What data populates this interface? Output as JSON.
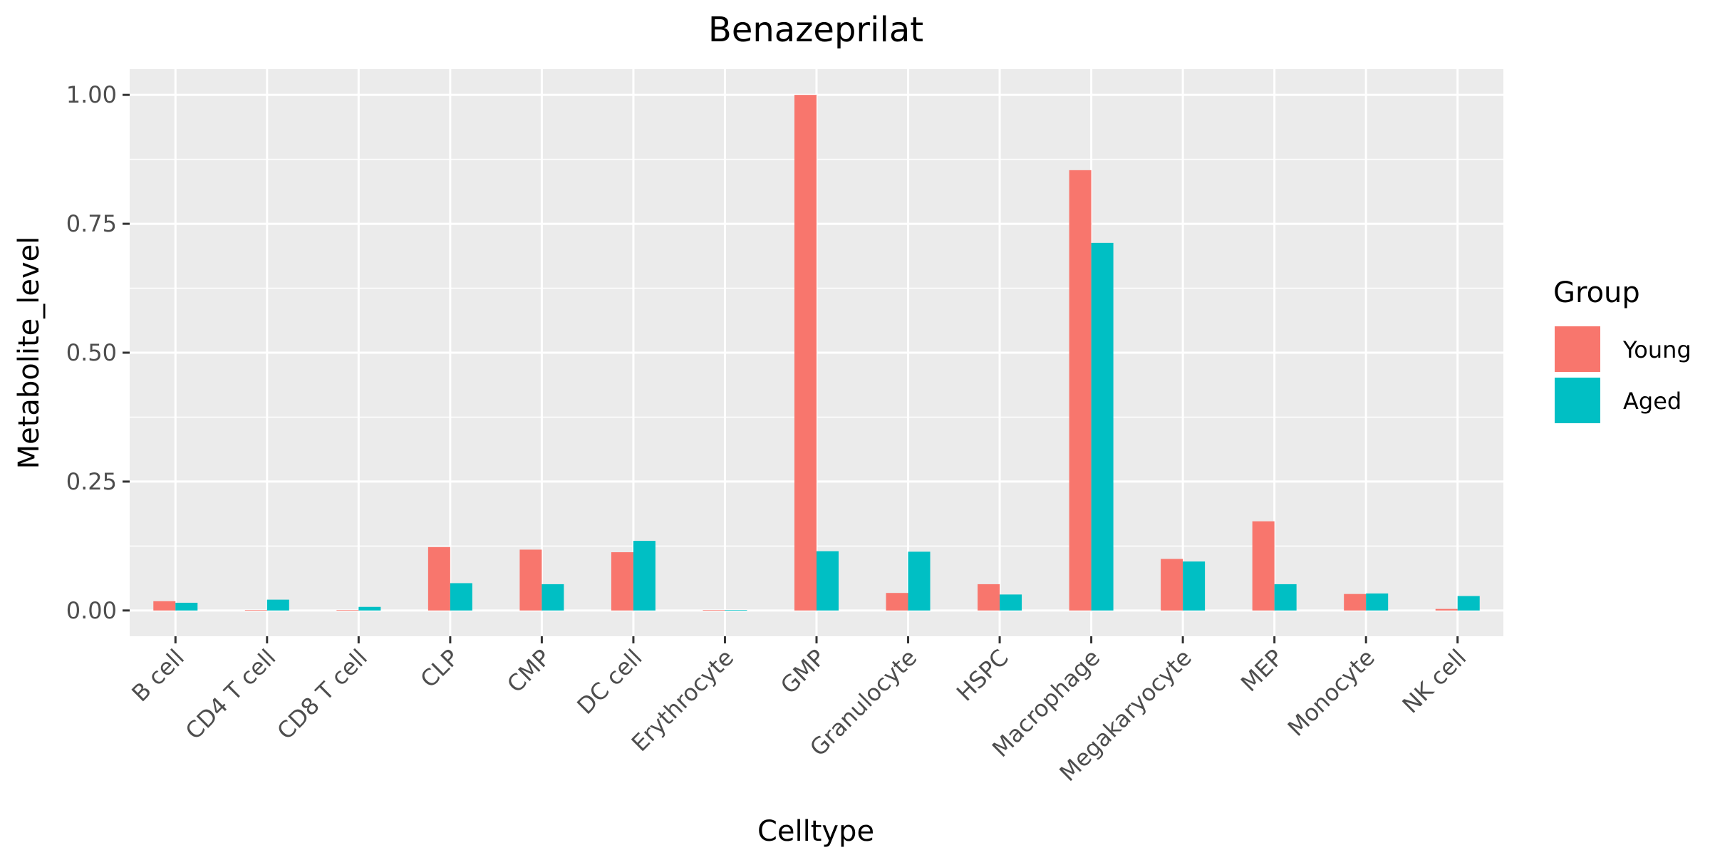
{
  "chart_data": {
    "type": "bar",
    "title": "Benazeprilat",
    "xlabel": "Celltype",
    "ylabel": "Metabolite_level",
    "ylim": [
      -0.05,
      1.05
    ],
    "yticks": [
      0.0,
      0.25,
      0.5,
      0.75,
      1.0
    ],
    "ytick_labels": [
      "0.00",
      "0.25",
      "0.50",
      "0.75",
      "1.00"
    ],
    "grid": true,
    "legend_title": "Group",
    "legend_position": "right",
    "categories": [
      "B cell",
      "CD4 T cell",
      "CD8 T cell",
      "CLP",
      "CMP",
      "DC cell",
      "Erythrocyte",
      "GMP",
      "Granulocyte",
      "HSPC",
      "Macrophage",
      "Megakaryocyte",
      "MEP",
      "Monocyte",
      "NK cell"
    ],
    "series": [
      {
        "name": "Young",
        "color": "#F8766D",
        "values": [
          0.018,
          0.001,
          0.001,
          0.123,
          0.118,
          0.113,
          0.0,
          1.0,
          0.034,
          0.051,
          0.854,
          0.1,
          0.173,
          0.032,
          0.003
        ]
      },
      {
        "name": "Aged",
        "color": "#00BFC4",
        "values": [
          0.015,
          0.021,
          0.007,
          0.053,
          0.051,
          0.135,
          0.001,
          0.115,
          0.114,
          0.031,
          0.713,
          0.095,
          0.051,
          0.033,
          0.028
        ]
      }
    ]
  }
}
